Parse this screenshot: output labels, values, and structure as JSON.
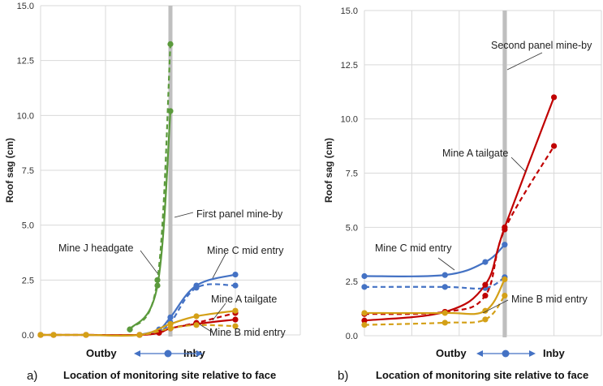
{
  "chart_data": [
    {
      "type": "line",
      "panel_label": "a)",
      "title": "",
      "xlabel": "Location of monitoring site relative to face",
      "ylabel": "Roof sag (cm)",
      "ylim": [
        0,
        15
      ],
      "xlim": [
        0,
        8
      ],
      "yticks": [
        "0.0",
        "2.5",
        "5.0",
        "7.5",
        "10.0",
        "12.5",
        "15.0"
      ],
      "ytick_values": [
        0,
        2.5,
        5,
        7.5,
        10,
        12.5,
        15
      ],
      "xgrid": [
        0,
        2,
        4,
        6,
        8
      ],
      "grid": true,
      "direction_labels": {
        "left": "Outby",
        "right": "Inby"
      },
      "reference_line": {
        "x": 4.0,
        "label": "First panel mine-by"
      },
      "series": [
        {
          "name": "Mine J headgate (solid)",
          "color": "#5b9a3c",
          "dashed": false,
          "x": [
            2.75,
            3.6,
            4.0
          ],
          "y": [
            0.25,
            2.25,
            10.2
          ]
        },
        {
          "name": "Mine J headgate (dashed)",
          "color": "#5b9a3c",
          "dashed": true,
          "x": [
            2.75,
            3.6,
            4.0
          ],
          "y": [
            0.25,
            2.5,
            13.25
          ]
        },
        {
          "name": "Mine C mid entry (solid)",
          "color": "#4472c4",
          "dashed": false,
          "x": [
            3.05,
            3.65,
            4.0,
            4.8,
            6.0
          ],
          "y": [
            0.0,
            0.25,
            0.8,
            2.25,
            2.75
          ]
        },
        {
          "name": "Mine C mid entry (dashed)",
          "color": "#4472c4",
          "dashed": true,
          "x": [
            3.05,
            3.65,
            4.0,
            4.8,
            6.0
          ],
          "y": [
            0.0,
            0.2,
            0.55,
            2.15,
            2.25
          ]
        },
        {
          "name": "Mine A tailgate (solid)",
          "color": "#c00000",
          "dashed": false,
          "x": [
            0,
            0.4,
            1.4,
            3.05,
            3.65,
            4.0,
            4.8,
            6.0
          ],
          "y": [
            0,
            0,
            0,
            0,
            0.1,
            0.3,
            0.5,
            0.7
          ]
        },
        {
          "name": "Mine A tailgate (dashed)",
          "color": "#c00000",
          "dashed": true,
          "x": [
            0,
            0.4,
            1.4,
            3.05,
            3.65,
            4.0,
            4.8,
            6.0
          ],
          "y": [
            0,
            0,
            0,
            0,
            0.1,
            0.3,
            0.55,
            1.0
          ]
        },
        {
          "name": "Mine B mid entry (solid)",
          "color": "#d4a017",
          "dashed": false,
          "x": [
            0,
            0.4,
            1.4,
            3.05,
            4.0,
            4.8,
            6.0
          ],
          "y": [
            0,
            0,
            0,
            0,
            0.5,
            0.85,
            1.1
          ]
        },
        {
          "name": "Mine B mid entry (dashed)",
          "color": "#d4a017",
          "dashed": true,
          "x": [
            0,
            0.4,
            1.4,
            3.05,
            4.0,
            4.8,
            6.0
          ],
          "y": [
            0,
            0,
            0,
            0,
            0.3,
            0.45,
            0.4
          ]
        }
      ],
      "annotations": [
        {
          "text": "First panel mine-by"
        },
        {
          "text": "Mine J headgate"
        },
        {
          "text": "Mine C mid entry"
        },
        {
          "text": "Mine A tailgate"
        },
        {
          "text": "Mine B mid entry"
        }
      ]
    },
    {
      "type": "line",
      "panel_label": "b)",
      "title": "",
      "xlabel": "Location of monitoring site relative to face",
      "ylabel": "Roof sag (cm)",
      "ylim": [
        0,
        15
      ],
      "xlim": [
        0,
        5
      ],
      "yticks": [
        "0.0",
        "2.5",
        "5.0",
        "7.5",
        "10.0",
        "12.5",
        "15.0"
      ],
      "ytick_values": [
        0,
        2.5,
        5,
        7.5,
        10,
        12.5,
        15
      ],
      "xgrid": [
        0,
        1,
        2,
        3,
        4,
        5
      ],
      "grid": true,
      "direction_labels": {
        "left": "Outby",
        "right": "Inby"
      },
      "reference_line": {
        "x": 2.96,
        "label": "Second panel mine-by"
      },
      "series": [
        {
          "name": "Mine C mid entry (solid)",
          "color": "#4472c4",
          "dashed": false,
          "x": [
            0,
            1.7,
            2.55,
            2.96
          ],
          "y": [
            2.75,
            2.8,
            3.4,
            4.2
          ]
        },
        {
          "name": "Mine C mid entry (dashed)",
          "color": "#4472c4",
          "dashed": true,
          "x": [
            0,
            1.7,
            2.55,
            2.96
          ],
          "y": [
            2.25,
            2.25,
            2.2,
            2.7
          ]
        },
        {
          "name": "Mine A tailgate (solid)",
          "color": "#c00000",
          "dashed": false,
          "x": [
            0,
            1.7,
            2.55,
            2.96,
            4.0
          ],
          "y": [
            0.7,
            1.1,
            2.35,
            5.0,
            11.0
          ]
        },
        {
          "name": "Mine A tailgate (dashed)",
          "color": "#c00000",
          "dashed": true,
          "x": [
            0,
            1.7,
            2.55,
            2.96,
            4.0
          ],
          "y": [
            1.0,
            1.1,
            1.85,
            4.9,
            8.75
          ]
        },
        {
          "name": "Mine B mid entry (solid)",
          "color": "#d4a017",
          "dashed": false,
          "x": [
            0,
            1.7,
            2.55,
            2.96
          ],
          "y": [
            1.05,
            1.05,
            1.15,
            2.6
          ]
        },
        {
          "name": "Mine B mid entry (dashed)",
          "color": "#d4a017",
          "dashed": true,
          "x": [
            0,
            1.7,
            2.55,
            2.96
          ],
          "y": [
            0.5,
            0.6,
            0.75,
            1.85
          ]
        }
      ],
      "annotations": [
        {
          "text": "Second panel mine-by"
        },
        {
          "text": "Mine A tailgate"
        },
        {
          "text": "Mine C mid entry"
        },
        {
          "text": "Mine B mid entry"
        }
      ]
    }
  ]
}
